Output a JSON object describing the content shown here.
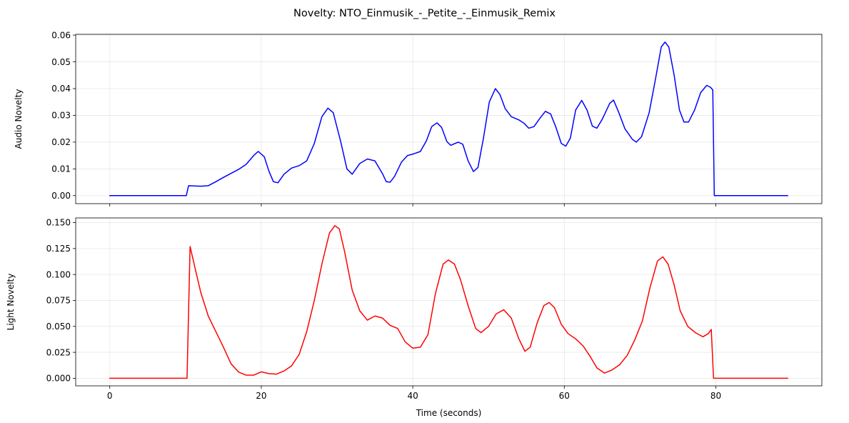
{
  "chart_data": {
    "type": "line",
    "title": "Novelty: NTO_Einmusik_-_Petite_-_Einmusik_Remix",
    "xlabel": "Time (seconds)",
    "xlim": [
      -4.5,
      94.0
    ],
    "xticks": [
      0,
      20,
      40,
      60,
      80
    ],
    "xtick_labels": [
      "0",
      "20",
      "40",
      "60",
      "80"
    ],
    "grid": true,
    "panels": [
      {
        "ylabel": "Audio Novelty",
        "ylim": [
          -0.003,
          0.0603
        ],
        "yticks": [
          0.0,
          0.01,
          0.02,
          0.03,
          0.04,
          0.05,
          0.06
        ],
        "ytick_labels": [
          "0.00",
          "0.01",
          "0.02",
          "0.03",
          "0.04",
          "0.05",
          "0.06"
        ],
        "show_xtick_labels": false,
        "series": [
          {
            "color": "#0000ff",
            "points": [
              [
                0,
                0
              ],
              [
                10.1,
                0
              ],
              [
                10.4,
                0.0037
              ],
              [
                12,
                0.0035
              ],
              [
                13,
                0.0037
              ],
              [
                14,
                0.0052
              ],
              [
                15,
                0.0068
              ],
              [
                16,
                0.0083
              ],
              [
                17,
                0.0098
              ],
              [
                18,
                0.0117
              ],
              [
                19,
                0.015
              ],
              [
                19.6,
                0.0165
              ],
              [
                20.4,
                0.0145
              ],
              [
                21,
                0.0092
              ],
              [
                21.6,
                0.0052
              ],
              [
                22.2,
                0.0048
              ],
              [
                23,
                0.008
              ],
              [
                24,
                0.0103
              ],
              [
                25,
                0.0112
              ],
              [
                26,
                0.013
              ],
              [
                27,
                0.0195
              ],
              [
                28,
                0.0295
              ],
              [
                28.8,
                0.0327
              ],
              [
                29.5,
                0.031
              ],
              [
                30.5,
                0.02
              ],
              [
                31.3,
                0.01
              ],
              [
                32,
                0.008
              ],
              [
                33,
                0.012
              ],
              [
                34,
                0.0137
              ],
              [
                35,
                0.013
              ],
              [
                36,
                0.0082
              ],
              [
                36.5,
                0.0052
              ],
              [
                37,
                0.005
              ],
              [
                37.6,
                0.0072
              ],
              [
                38.5,
                0.0125
              ],
              [
                39.3,
                0.015
              ],
              [
                40,
                0.0155
              ],
              [
                41,
                0.0165
              ],
              [
                41.8,
                0.0205
              ],
              [
                42.5,
                0.0258
              ],
              [
                43.2,
                0.0272
              ],
              [
                43.8,
                0.0255
              ],
              [
                44.5,
                0.0202
              ],
              [
                45,
                0.0188
              ],
              [
                46,
                0.02
              ],
              [
                46.6,
                0.0192
              ],
              [
                47.3,
                0.013
              ],
              [
                48,
                0.009
              ],
              [
                48.6,
                0.0105
              ],
              [
                49.3,
                0.021
              ],
              [
                50.1,
                0.035
              ],
              [
                50.9,
                0.04
              ],
              [
                51.5,
                0.0378
              ],
              [
                52.2,
                0.0325
              ],
              [
                53,
                0.0295
              ],
              [
                54,
                0.0283
              ],
              [
                54.7,
                0.027
              ],
              [
                55.3,
                0.0252
              ],
              [
                56,
                0.0258
              ],
              [
                56.8,
                0.029
              ],
              [
                57.5,
                0.0315
              ],
              [
                58.2,
                0.0305
              ],
              [
                58.9,
                0.0255
              ],
              [
                59.6,
                0.0195
              ],
              [
                60.2,
                0.0185
              ],
              [
                60.8,
                0.0215
              ],
              [
                61.5,
                0.032
              ],
              [
                62.3,
                0.0356
              ],
              [
                63,
                0.032
              ],
              [
                63.7,
                0.026
              ],
              [
                64.3,
                0.0252
              ],
              [
                65,
                0.0285
              ],
              [
                66,
                0.0345
              ],
              [
                66.5,
                0.0357
              ],
              [
                67.2,
                0.031
              ],
              [
                68,
                0.025
              ],
              [
                69,
                0.021
              ],
              [
                69.5,
                0.02
              ],
              [
                70.2,
                0.022
              ],
              [
                71.2,
                0.031
              ],
              [
                72,
                0.043
              ],
              [
                72.8,
                0.0556
              ],
              [
                73.3,
                0.0574
              ],
              [
                73.8,
                0.0555
              ],
              [
                74.5,
                0.045
              ],
              [
                75.2,
                0.032
              ],
              [
                75.8,
                0.0275
              ],
              [
                76.4,
                0.0275
              ],
              [
                77.2,
                0.032
              ],
              [
                78,
                0.0385
              ],
              [
                78.8,
                0.0412
              ],
              [
                79.3,
                0.0405
              ],
              [
                79.6,
                0.0395
              ],
              [
                79.8,
                0
              ],
              [
                89.5,
                0
              ]
            ]
          }
        ]
      },
      {
        "ylabel": "Light Novelty",
        "ylim": [
          -0.0073,
          0.1545
        ],
        "yticks": [
          0.0,
          0.025,
          0.05,
          0.075,
          0.1,
          0.125,
          0.15
        ],
        "ytick_labels": [
          "0.000",
          "0.025",
          "0.050",
          "0.075",
          "0.100",
          "0.125",
          "0.150"
        ],
        "show_xtick_labels": true,
        "series": [
          {
            "color": "#ff0000",
            "points": [
              [
                0,
                0
              ],
              [
                10.2,
                0
              ],
              [
                10.6,
                0.127
              ],
              [
                11.2,
                0.108
              ],
              [
                12,
                0.083
              ],
              [
                13,
                0.06
              ],
              [
                14,
                0.045
              ],
              [
                15,
                0.03
              ],
              [
                16,
                0.014
              ],
              [
                17,
                0.006
              ],
              [
                18,
                0.003
              ],
              [
                19,
                0.003
              ],
              [
                20,
                0.0062
              ],
              [
                21,
                0.0045
              ],
              [
                22,
                0.004
              ],
              [
                23,
                0.007
              ],
              [
                24,
                0.012
              ],
              [
                25,
                0.023
              ],
              [
                26,
                0.045
              ],
              [
                27,
                0.075
              ],
              [
                28,
                0.11
              ],
              [
                29,
                0.14
              ],
              [
                29.7,
                0.147
              ],
              [
                30.3,
                0.144
              ],
              [
                31,
                0.122
              ],
              [
                32,
                0.085
              ],
              [
                33,
                0.065
              ],
              [
                34,
                0.056
              ],
              [
                35,
                0.06
              ],
              [
                36,
                0.058
              ],
              [
                37,
                0.051
              ],
              [
                38,
                0.048
              ],
              [
                39,
                0.035
              ],
              [
                40,
                0.029
              ],
              [
                41,
                0.03
              ],
              [
                42,
                0.042
              ],
              [
                43,
                0.082
              ],
              [
                44,
                0.11
              ],
              [
                44.7,
                0.114
              ],
              [
                45.5,
                0.11
              ],
              [
                46.3,
                0.095
              ],
              [
                47.3,
                0.07
              ],
              [
                48.3,
                0.048
              ],
              [
                49,
                0.044
              ],
              [
                50,
                0.05
              ],
              [
                51,
                0.062
              ],
              [
                52,
                0.066
              ],
              [
                53,
                0.058
              ],
              [
                54,
                0.038
              ],
              [
                54.8,
                0.026
              ],
              [
                55.5,
                0.03
              ],
              [
                56.4,
                0.053
              ],
              [
                57.3,
                0.07
              ],
              [
                58,
                0.073
              ],
              [
                58.7,
                0.068
              ],
              [
                59.6,
                0.052
              ],
              [
                60.5,
                0.043
              ],
              [
                61.5,
                0.038
              ],
              [
                62.5,
                0.031
              ],
              [
                63.5,
                0.02
              ],
              [
                64.3,
                0.01
              ],
              [
                65.3,
                0.005
              ],
              [
                66.3,
                0.008
              ],
              [
                67.3,
                0.013
              ],
              [
                68.3,
                0.022
              ],
              [
                69.3,
                0.037
              ],
              [
                70.3,
                0.055
              ],
              [
                71.3,
                0.087
              ],
              [
                72.3,
                0.113
              ],
              [
                73,
                0.117
              ],
              [
                73.7,
                0.11
              ],
              [
                74.5,
                0.09
              ],
              [
                75.3,
                0.065
              ],
              [
                76.3,
                0.05
              ],
              [
                77.3,
                0.044
              ],
              [
                78.3,
                0.04
              ],
              [
                79,
                0.043
              ],
              [
                79.4,
                0.047
              ],
              [
                79.7,
                0
              ],
              [
                89.5,
                0
              ]
            ]
          }
        ]
      }
    ]
  }
}
